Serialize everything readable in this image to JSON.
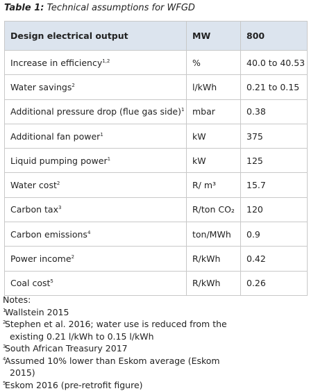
{
  "caption": {
    "label": "Table 1:",
    "text": "Technical assumptions for WFGD"
  },
  "table": {
    "header": [
      "Design electrical output",
      "MW",
      "800"
    ],
    "rows": [
      [
        {
          "text": "Increase in efficiency",
          "sup": "1,2"
        },
        {
          "text": "%"
        },
        {
          "text": "40.0 to 40.53"
        }
      ],
      [
        {
          "text": "Water savings",
          "sup": "2"
        },
        {
          "text": "l/kWh"
        },
        {
          "text": "0.21 to 0.15"
        }
      ],
      [
        {
          "text": "Additional pressure drop (flue gas side)",
          "sup": "1"
        },
        {
          "text": "mbar"
        },
        {
          "text": "0.38"
        }
      ],
      [
        {
          "text": "Additional fan power",
          "sup": "1"
        },
        {
          "text": "kW"
        },
        {
          "text": "375"
        }
      ],
      [
        {
          "text": "Liquid pumping power",
          "sup": "1"
        },
        {
          "text": "kW"
        },
        {
          "text": "125"
        }
      ],
      [
        {
          "text": "Water cost",
          "sup": "2"
        },
        {
          "text": "R/ m³"
        },
        {
          "text": "15.7"
        }
      ],
      [
        {
          "text": "Carbon tax",
          "sup": "3"
        },
        {
          "text": "R/ton CO₂"
        },
        {
          "text": "120"
        }
      ],
      [
        {
          "text": "Carbon emissions",
          "sup": "4"
        },
        {
          "text": "ton/MWh"
        },
        {
          "text": "0.9"
        }
      ],
      [
        {
          "text": "Power income",
          "sup": "2"
        },
        {
          "text": "R/kWh"
        },
        {
          "text": "0.42"
        }
      ],
      [
        {
          "text": "Coal cost",
          "sup": "5"
        },
        {
          "text": "R/kWh"
        },
        {
          "text": "0.26"
        }
      ]
    ]
  },
  "notes": {
    "heading": "Notes:",
    "items": [
      {
        "sup": "1",
        "text": "Wallstein 2015"
      },
      {
        "sup": "2",
        "text": "Stephen et al. 2016; water use is reduced from the existing 0.21 l/kWh to 0.15 l/kWh"
      },
      {
        "sup": "3",
        "text": "South African Treasury 2017"
      },
      {
        "sup": "4",
        "text": "Assumed 10% lower than Eskom average (Eskom 2015)"
      },
      {
        "sup": "5",
        "text": "Eskom 2016 (pre-retrofit figure)"
      }
    ]
  }
}
